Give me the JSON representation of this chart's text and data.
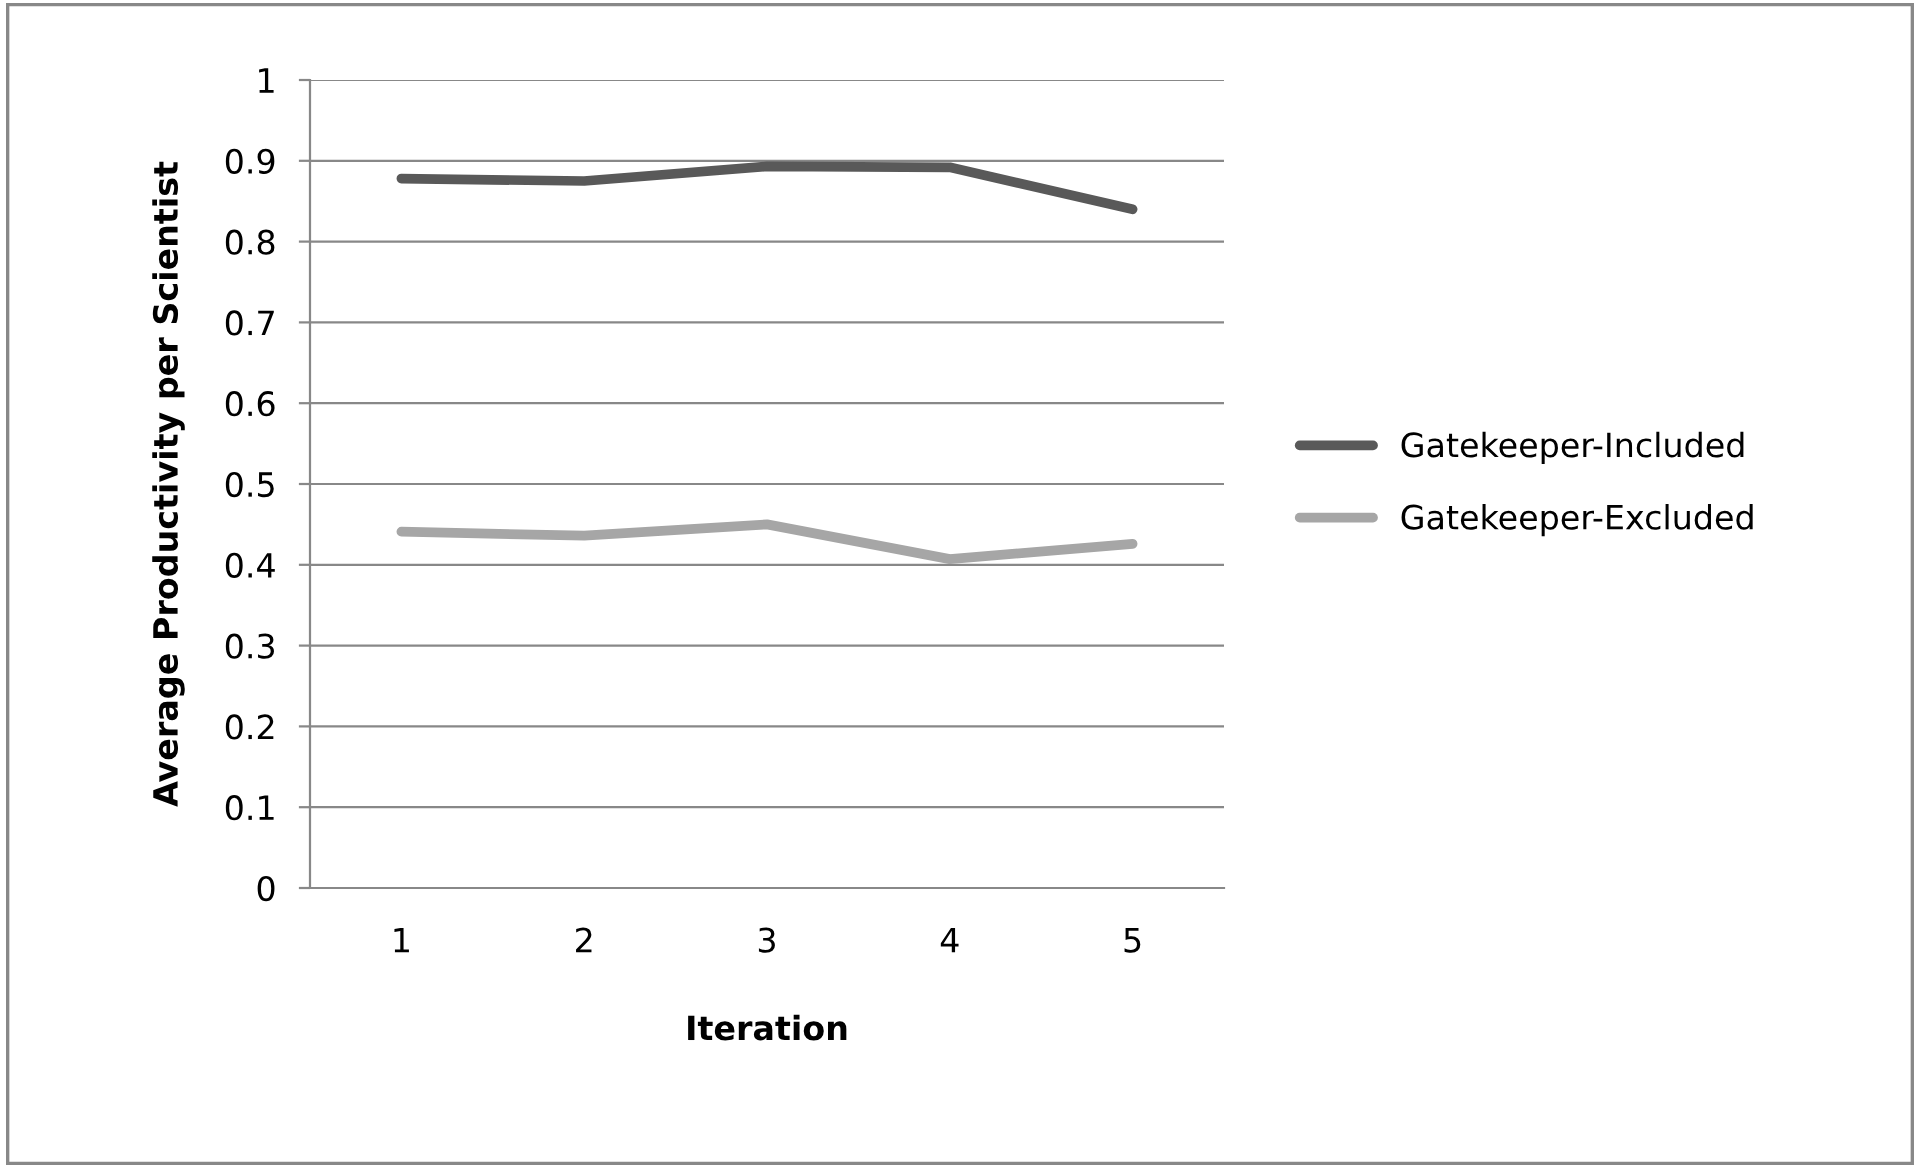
{
  "chart_data": {
    "type": "line",
    "xlabel": "Iteration",
    "ylabel": "Average Productivity per Scientist",
    "categories": [
      "1",
      "2",
      "3",
      "4",
      "5"
    ],
    "series": [
      {
        "name": "Gatekeeper-Included",
        "color": "#595959",
        "values": [
          0.878,
          0.875,
          0.893,
          0.892,
          0.84
        ]
      },
      {
        "name": "Gatekeeper-Excluded",
        "color": "#a6a6a6",
        "values": [
          0.441,
          0.436,
          0.45,
          0.407,
          0.426
        ]
      }
    ],
    "ylim": [
      0,
      1
    ],
    "yticks": [
      0,
      0.1,
      0.2,
      0.3,
      0.4,
      0.5,
      0.6,
      0.7,
      0.8,
      0.9,
      1
    ],
    "grid": "y",
    "legend": "right",
    "marker": "none",
    "line_style": "solid"
  }
}
